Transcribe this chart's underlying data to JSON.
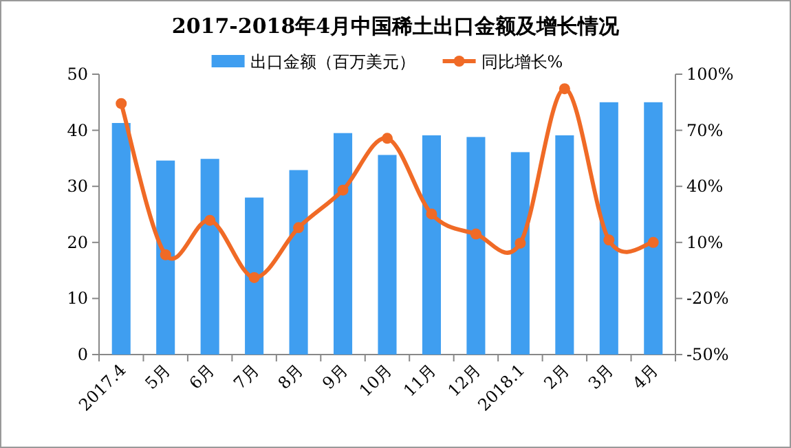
{
  "chart_data": {
    "type": "bar",
    "title": "2017-2018年4月中国稀土出口金额及增长情况",
    "categories": [
      "2017.4",
      "5月",
      "6月",
      "7月",
      "8月",
      "9月",
      "10月",
      "11月",
      "12月",
      "2018.1",
      "2月",
      "3月",
      "4月"
    ],
    "series": [
      {
        "name": "出口金额（百万美元）",
        "color": "#3f9ef0",
        "values": [
          41.3,
          34.6,
          34.9,
          28.0,
          32.9,
          39.5,
          35.6,
          39.1,
          38.8,
          36.1,
          39.1,
          45.0,
          45.0
        ]
      },
      {
        "name": "同比增长%",
        "type": "line",
        "axis": "y2",
        "color": "#f06a26",
        "marker": "circle",
        "values": [
          84.3,
          3.4,
          21.8,
          -8.8,
          17.9,
          38.0,
          65.7,
          25.2,
          14.5,
          9.6,
          92.2,
          11.3,
          10.0
        ]
      }
    ],
    "ylim": [
      0,
      50
    ],
    "yticks": [
      0,
      10,
      20,
      30,
      40,
      50
    ],
    "y2lim": [
      -50,
      100
    ],
    "y2ticks": [
      {
        "value": -50,
        "label": "-50%"
      },
      {
        "value": -20,
        "label": "-20%"
      },
      {
        "value": 10,
        "label": "10%"
      },
      {
        "value": 40,
        "label": "40%"
      },
      {
        "value": 70,
        "label": "70%"
      },
      {
        "value": 100,
        "label": "100%"
      }
    ],
    "grid": false,
    "legend": "top"
  }
}
